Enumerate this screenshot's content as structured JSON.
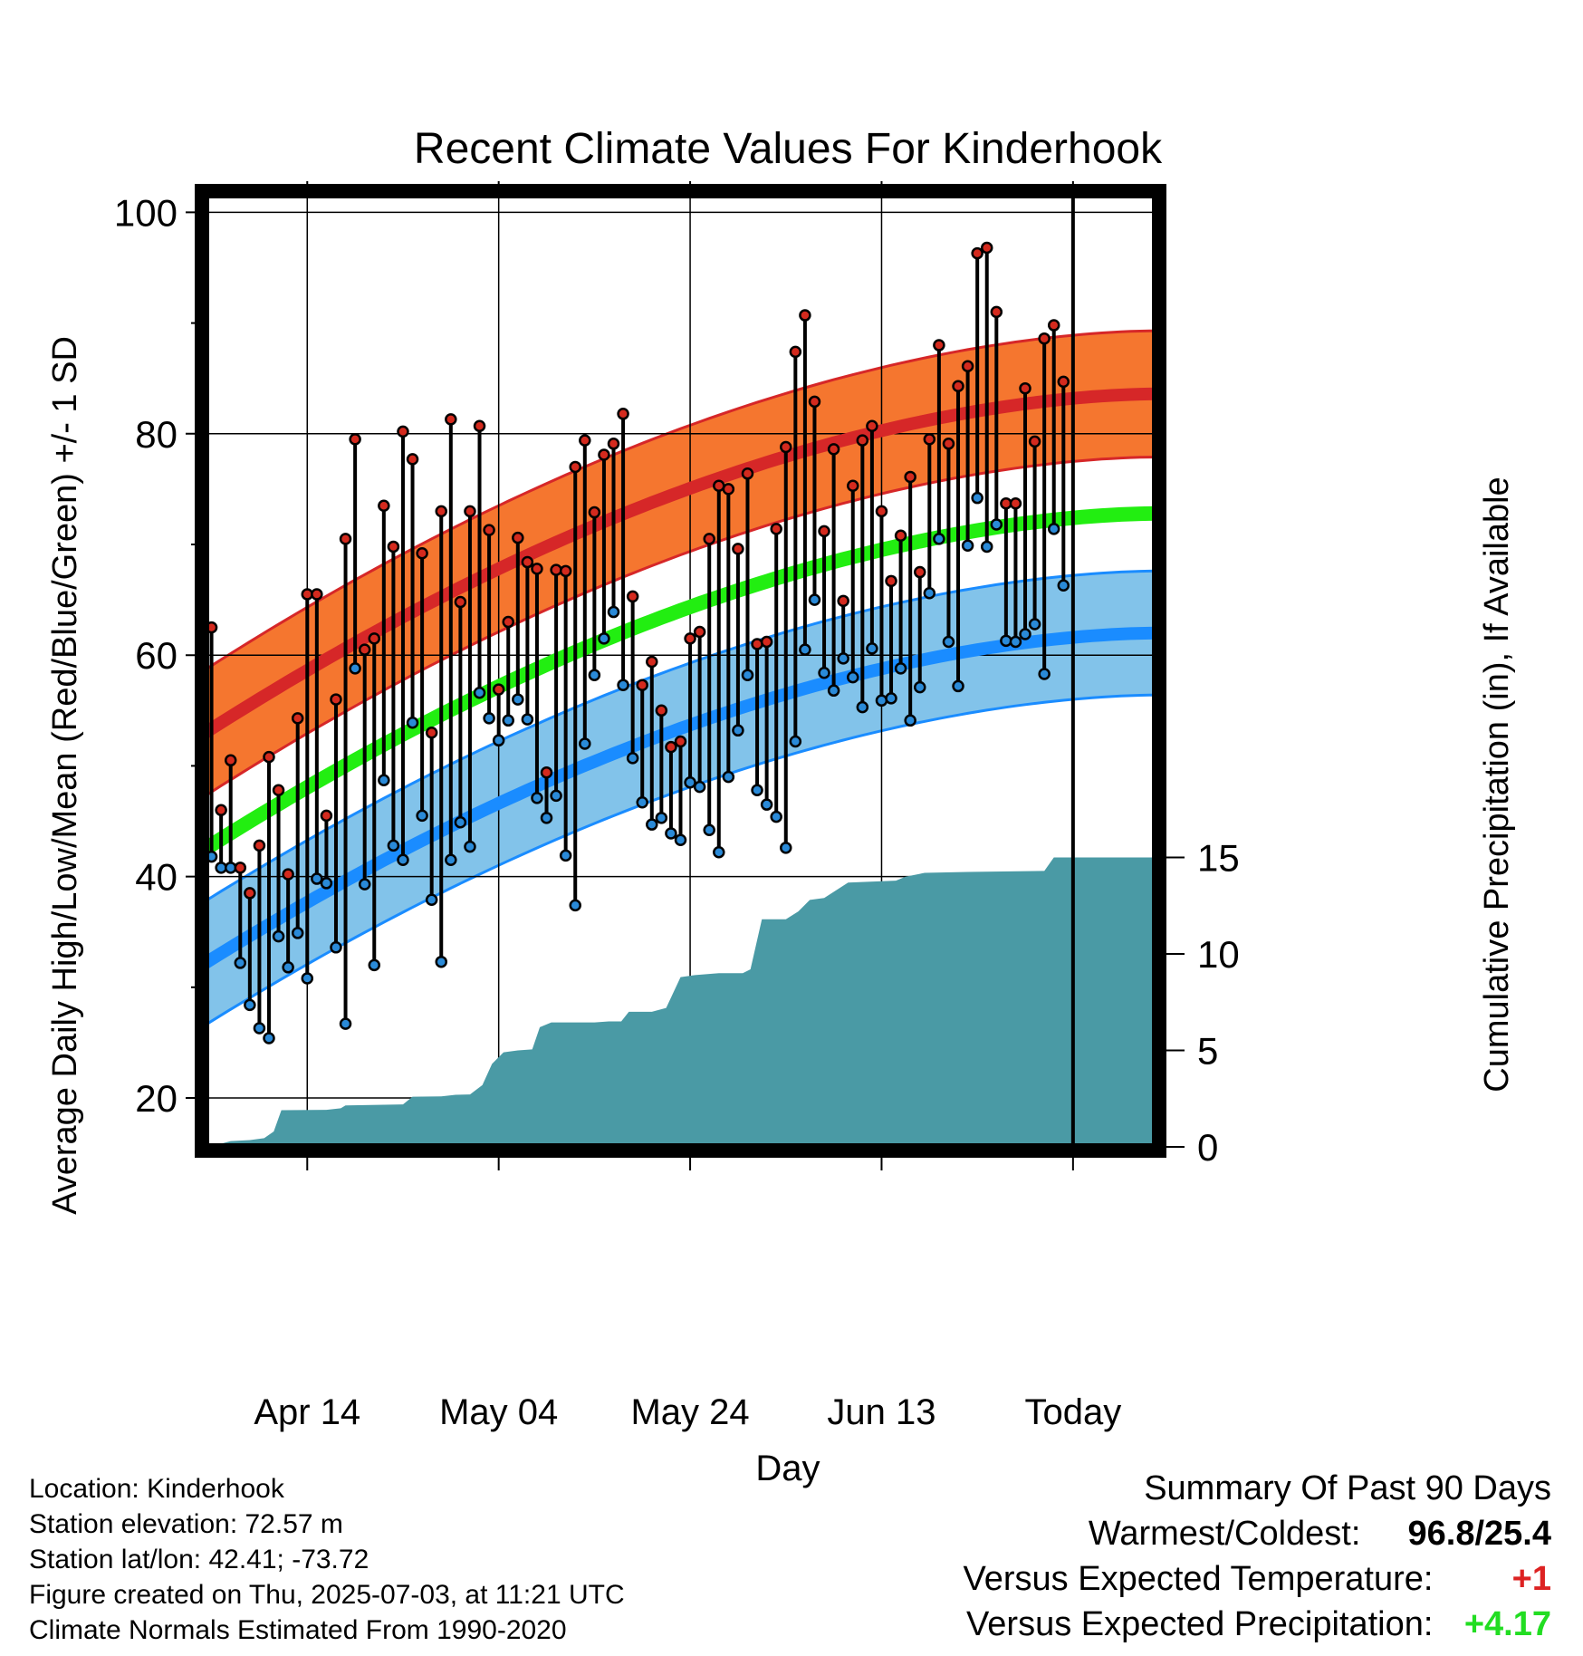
{
  "title": "Recent Climate Values For Kinderhook",
  "chart_data": {
    "type": "line",
    "title": "Recent Climate Values For Kinderhook",
    "xlabel": "Day",
    "ylabel_left": "Average Daily High/Low/Mean (Red/Blue/Green) +/- 1 SD",
    "ylabel_right": "Cumulative Precipitation (in), If Available",
    "x_tick_labels": [
      "Apr 14",
      "May 04",
      "May 24",
      "Jun 13",
      "Today"
    ],
    "x_tick_days": [
      11,
      31,
      51,
      71,
      91
    ],
    "x_range_days": [
      0,
      100
    ],
    "ylim_left": [
      15,
      103
    ],
    "y_ticks_left": [
      "20",
      "40",
      "60",
      "80",
      "100"
    ],
    "ylim_right": [
      0,
      17.5
    ],
    "y_ticks_right": [
      "0",
      "5",
      "10",
      "15"
    ],
    "today_annotation": [
      "90",
      "Days"
    ],
    "grid": true,
    "colors": {
      "high_band": "#f5762f",
      "high_line": "#d62728",
      "low_band": "#82c3ea",
      "low_line": "#1a8cff",
      "mean_line": "#22ee11",
      "precip": "#4a9aa5",
      "high_marker": "#d42a1e",
      "low_marker": "#2a8ad8"
    },
    "normal_high": {
      "start": 52.8,
      "end": 83.6
    },
    "normal_high_sd": 5.7,
    "normal_low": {
      "start": 32.0,
      "end": 62.0
    },
    "normal_low_sd": 5.6,
    "normal_mean": {
      "start": 42.3,
      "end": 72.8
    },
    "daily_highs": [
      62.5,
      46.0,
      50.5,
      40.8,
      38.5,
      42.8,
      50.8,
      47.8,
      40.2,
      54.3,
      65.5,
      65.5,
      45.5,
      56.0,
      70.5,
      79.5,
      60.5,
      61.5,
      73.5,
      69.8,
      80.2,
      77.7,
      69.2,
      53.0,
      73.0,
      81.3,
      64.8,
      73.0,
      80.7,
      71.3,
      56.9,
      63.0,
      70.6,
      68.4,
      67.8,
      49.4,
      67.7,
      67.6,
      77.0,
      79.4,
      72.9,
      78.1,
      79.1,
      81.8,
      65.3,
      57.3,
      59.4,
      55.0,
      51.7,
      52.2,
      61.5,
      62.1,
      70.5,
      75.3,
      75.0,
      69.6,
      76.4,
      61.0,
      61.2,
      71.4,
      78.8,
      87.4,
      90.7,
      82.9,
      71.2,
      78.6,
      64.9,
      75.3,
      79.4,
      80.7,
      73.0,
      66.7,
      70.8,
      76.1,
      67.5,
      79.5,
      88.0,
      79.1,
      84.3,
      86.1,
      96.3,
      96.8,
      91.0,
      73.7,
      73.7,
      84.1,
      79.3,
      88.6,
      89.8,
      84.7
    ],
    "daily_lows": [
      41.8,
      40.8,
      40.8,
      32.2,
      28.4,
      26.3,
      25.4,
      34.6,
      31.8,
      34.9,
      30.8,
      39.8,
      39.4,
      33.6,
      26.7,
      58.8,
      39.3,
      32.0,
      48.7,
      42.8,
      41.5,
      53.9,
      45.5,
      37.9,
      32.3,
      41.5,
      44.9,
      42.7,
      56.6,
      54.3,
      52.3,
      54.1,
      56.0,
      54.2,
      47.1,
      45.3,
      47.3,
      41.9,
      37.4,
      52.0,
      58.2,
      61.5,
      63.9,
      57.3,
      50.7,
      46.7,
      44.7,
      45.3,
      43.9,
      43.3,
      48.5,
      48.1,
      44.2,
      42.2,
      49.0,
      53.2,
      58.2,
      47.8,
      46.5,
      45.4,
      42.6,
      52.2,
      60.5,
      65.0,
      58.4,
      56.8,
      59.7,
      58.0,
      55.3,
      60.6,
      55.9,
      56.1,
      58.8,
      54.1,
      57.1,
      65.6,
      70.5,
      61.2,
      57.2,
      69.9,
      74.2,
      69.8,
      71.8,
      61.3,
      61.2,
      61.9,
      62.8,
      58.3,
      71.4,
      66.3
    ],
    "cumulative_precip": [
      [
        0,
        0.0
      ],
      [
        1.5,
        0.1
      ],
      [
        3,
        0.3
      ],
      [
        5,
        0.35
      ],
      [
        6.5,
        0.45
      ],
      [
        7.5,
        0.8
      ],
      [
        8.3,
        1.9
      ],
      [
        13,
        1.92
      ],
      [
        14.5,
        2.0
      ],
      [
        15,
        2.15
      ],
      [
        21,
        2.2
      ],
      [
        22,
        2.6
      ],
      [
        25,
        2.62
      ],
      [
        26.5,
        2.7
      ],
      [
        28,
        2.72
      ],
      [
        29.3,
        3.2
      ],
      [
        30.3,
        4.3
      ],
      [
        31.5,
        4.9
      ],
      [
        33,
        5.0
      ],
      [
        34.5,
        5.05
      ],
      [
        35.3,
        6.2
      ],
      [
        36.5,
        6.45
      ],
      [
        41,
        6.45
      ],
      [
        42.5,
        6.5
      ],
      [
        43.8,
        6.5
      ],
      [
        44.6,
        7.0
      ],
      [
        47,
        7.0
      ],
      [
        48.5,
        7.2
      ],
      [
        50,
        8.8
      ],
      [
        51.5,
        8.9
      ],
      [
        54,
        9.0
      ],
      [
        56.5,
        9.0
      ],
      [
        57.3,
        9.2
      ],
      [
        58.5,
        11.8
      ],
      [
        61,
        11.8
      ],
      [
        62.3,
        12.2
      ],
      [
        63.5,
        12.8
      ],
      [
        65,
        12.9
      ],
      [
        67.5,
        13.7
      ],
      [
        72.5,
        13.8
      ],
      [
        73.5,
        14.0
      ],
      [
        75.5,
        14.2
      ],
      [
        80,
        14.25
      ],
      [
        88,
        14.3
      ],
      [
        89,
        15.0
      ],
      [
        100,
        15.0
      ]
    ]
  },
  "info": {
    "location": "Location: Kinderhook",
    "elevation": "Station elevation: 72.57 m",
    "latlon": "Station lat/lon: 42.41; -73.72",
    "created": "Figure created on Thu, 2025-07-03, at 11:21 UTC",
    "normals": "Climate Normals Estimated From 1990-2020"
  },
  "summary": {
    "heading": "Summary Of Past 90 Days",
    "warm_cold_label": "Warmest/Coldest:",
    "warm_cold_value": "96.8/25.4",
    "temp_label": "Versus Expected Temperature:",
    "temp_value": "+1",
    "temp_value_color": "#dd2222",
    "precip_label": "Versus Expected Precipitation:",
    "precip_value": "+4.17",
    "precip_value_color": "#22dd22"
  }
}
